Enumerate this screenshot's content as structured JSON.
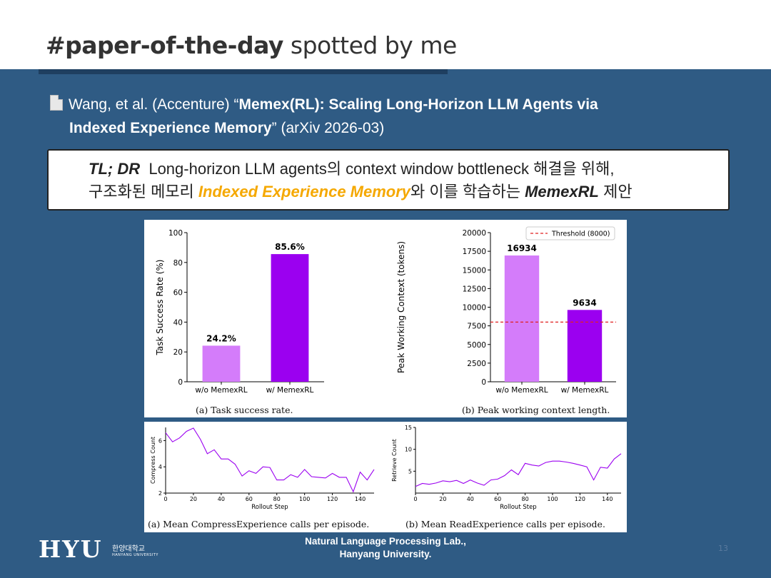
{
  "header": {
    "title_bold": "#paper-of-the-day",
    "title_rest": "spotted by me"
  },
  "reference": {
    "authors": "Wang, et al. (Accenture) “",
    "paper_title_1": "Memex(RL): Scaling Long-Horizon LLM Agents via",
    "paper_title_2": "Indexed Experience Memory",
    "venue": "” (arXiv 2026-03)",
    "icon": "document-icon"
  },
  "tldr": {
    "label": "TL; DR",
    "line1_rest": "Long-horizon LLM agents의 context window bottleneck 해결을 위해,",
    "line2_pre": "구조화된 메모리 ",
    "line2_highlight": "Indexed Experience Memory",
    "line2_mid": "와 이를 학습하는 ",
    "line2_method": "MemexRL",
    "line2_post": " 제안",
    "highlight_color": "#f5a800"
  },
  "chart_data": [
    {
      "type": "bar",
      "ylabel": "Task Success Rate (%)",
      "categories": [
        "w/o MemexRL",
        "w/ MemexRL"
      ],
      "values": [
        24.2,
        85.6
      ],
      "value_labels": [
        "24.2%",
        "85.6%"
      ],
      "ylim": [
        0,
        100
      ],
      "yticks": [
        0,
        20,
        40,
        60,
        80,
        100
      ],
      "colors": [
        "#d47cfa",
        "#9b00f0"
      ],
      "caption": "(a) Task success rate."
    },
    {
      "type": "bar",
      "ylabel": "Peak Working Context (tokens)",
      "categories": [
        "w/o MemexRL",
        "w/ MemexRL"
      ],
      "values": [
        16934,
        9634
      ],
      "value_labels": [
        "16934",
        "9634"
      ],
      "ylim": [
        0,
        20000
      ],
      "yticks": [
        0,
        2500,
        5000,
        7500,
        10000,
        12500,
        15000,
        17500,
        20000
      ],
      "threshold": 8000,
      "threshold_label": "Threshold (8000)",
      "colors": [
        "#d47cfa",
        "#9b00f0"
      ],
      "threshold_color": "#e02020",
      "legend": "top-right",
      "caption": "(b) Peak working context length."
    },
    {
      "type": "line",
      "ylabel": "Compress Count",
      "xlabel": "Rollout Step",
      "xlim": [
        0,
        150
      ],
      "ylim": [
        2,
        7
      ],
      "xticks": [
        0,
        20,
        40,
        60,
        80,
        100,
        120,
        140
      ],
      "yticks": [
        2,
        4,
        6
      ],
      "color": "#9b00f0",
      "x": [
        0,
        5,
        10,
        15,
        20,
        25,
        30,
        35,
        40,
        45,
        50,
        55,
        60,
        65,
        70,
        75,
        80,
        85,
        90,
        95,
        100,
        105,
        110,
        115,
        120,
        125,
        130,
        135,
        140,
        145,
        150
      ],
      "y": [
        6.6,
        5.9,
        6.2,
        6.7,
        6.95,
        6.1,
        5.0,
        5.3,
        4.6,
        4.6,
        4.2,
        3.3,
        3.7,
        3.5,
        4.0,
        3.95,
        3.0,
        3.0,
        3.4,
        3.2,
        3.8,
        3.25,
        3.2,
        3.15,
        3.5,
        3.2,
        3.2,
        2.1,
        3.6,
        3.0,
        3.8
      ],
      "caption": "(a) Mean CompressExperience calls per episode."
    },
    {
      "type": "line",
      "ylabel": "Retrieve Count",
      "xlabel": "Rollout Step",
      "xlim": [
        0,
        150
      ],
      "ylim": [
        0,
        15
      ],
      "xticks": [
        0,
        20,
        40,
        60,
        80,
        100,
        120,
        140
      ],
      "yticks": [
        5,
        10,
        15
      ],
      "color": "#9b00f0",
      "x": [
        0,
        5,
        10,
        15,
        20,
        25,
        30,
        35,
        40,
        45,
        50,
        55,
        60,
        65,
        70,
        75,
        80,
        85,
        90,
        95,
        100,
        105,
        110,
        115,
        120,
        125,
        130,
        135,
        140,
        145,
        150
      ],
      "y": [
        1.5,
        2.2,
        2.0,
        2.3,
        2.8,
        2.6,
        2.9,
        2.2,
        3.0,
        2.3,
        1.8,
        3.0,
        3.2,
        4.0,
        5.3,
        4.2,
        6.8,
        6.4,
        6.2,
        7.0,
        7.3,
        7.3,
        7.1,
        6.8,
        6.4,
        6.0,
        3.0,
        5.9,
        5.7,
        7.8,
        9.0
      ],
      "caption": "(b) Mean ReadExperience calls per episode."
    }
  ],
  "footer": {
    "logo_text": "HYU",
    "logo_korean": "한양대학교",
    "logo_english": "HANYANG UNIVERSITY",
    "lab_line1": "Natural Language Processing Lab.,",
    "lab_line2": "Hanyang University.",
    "page_number": "13"
  }
}
